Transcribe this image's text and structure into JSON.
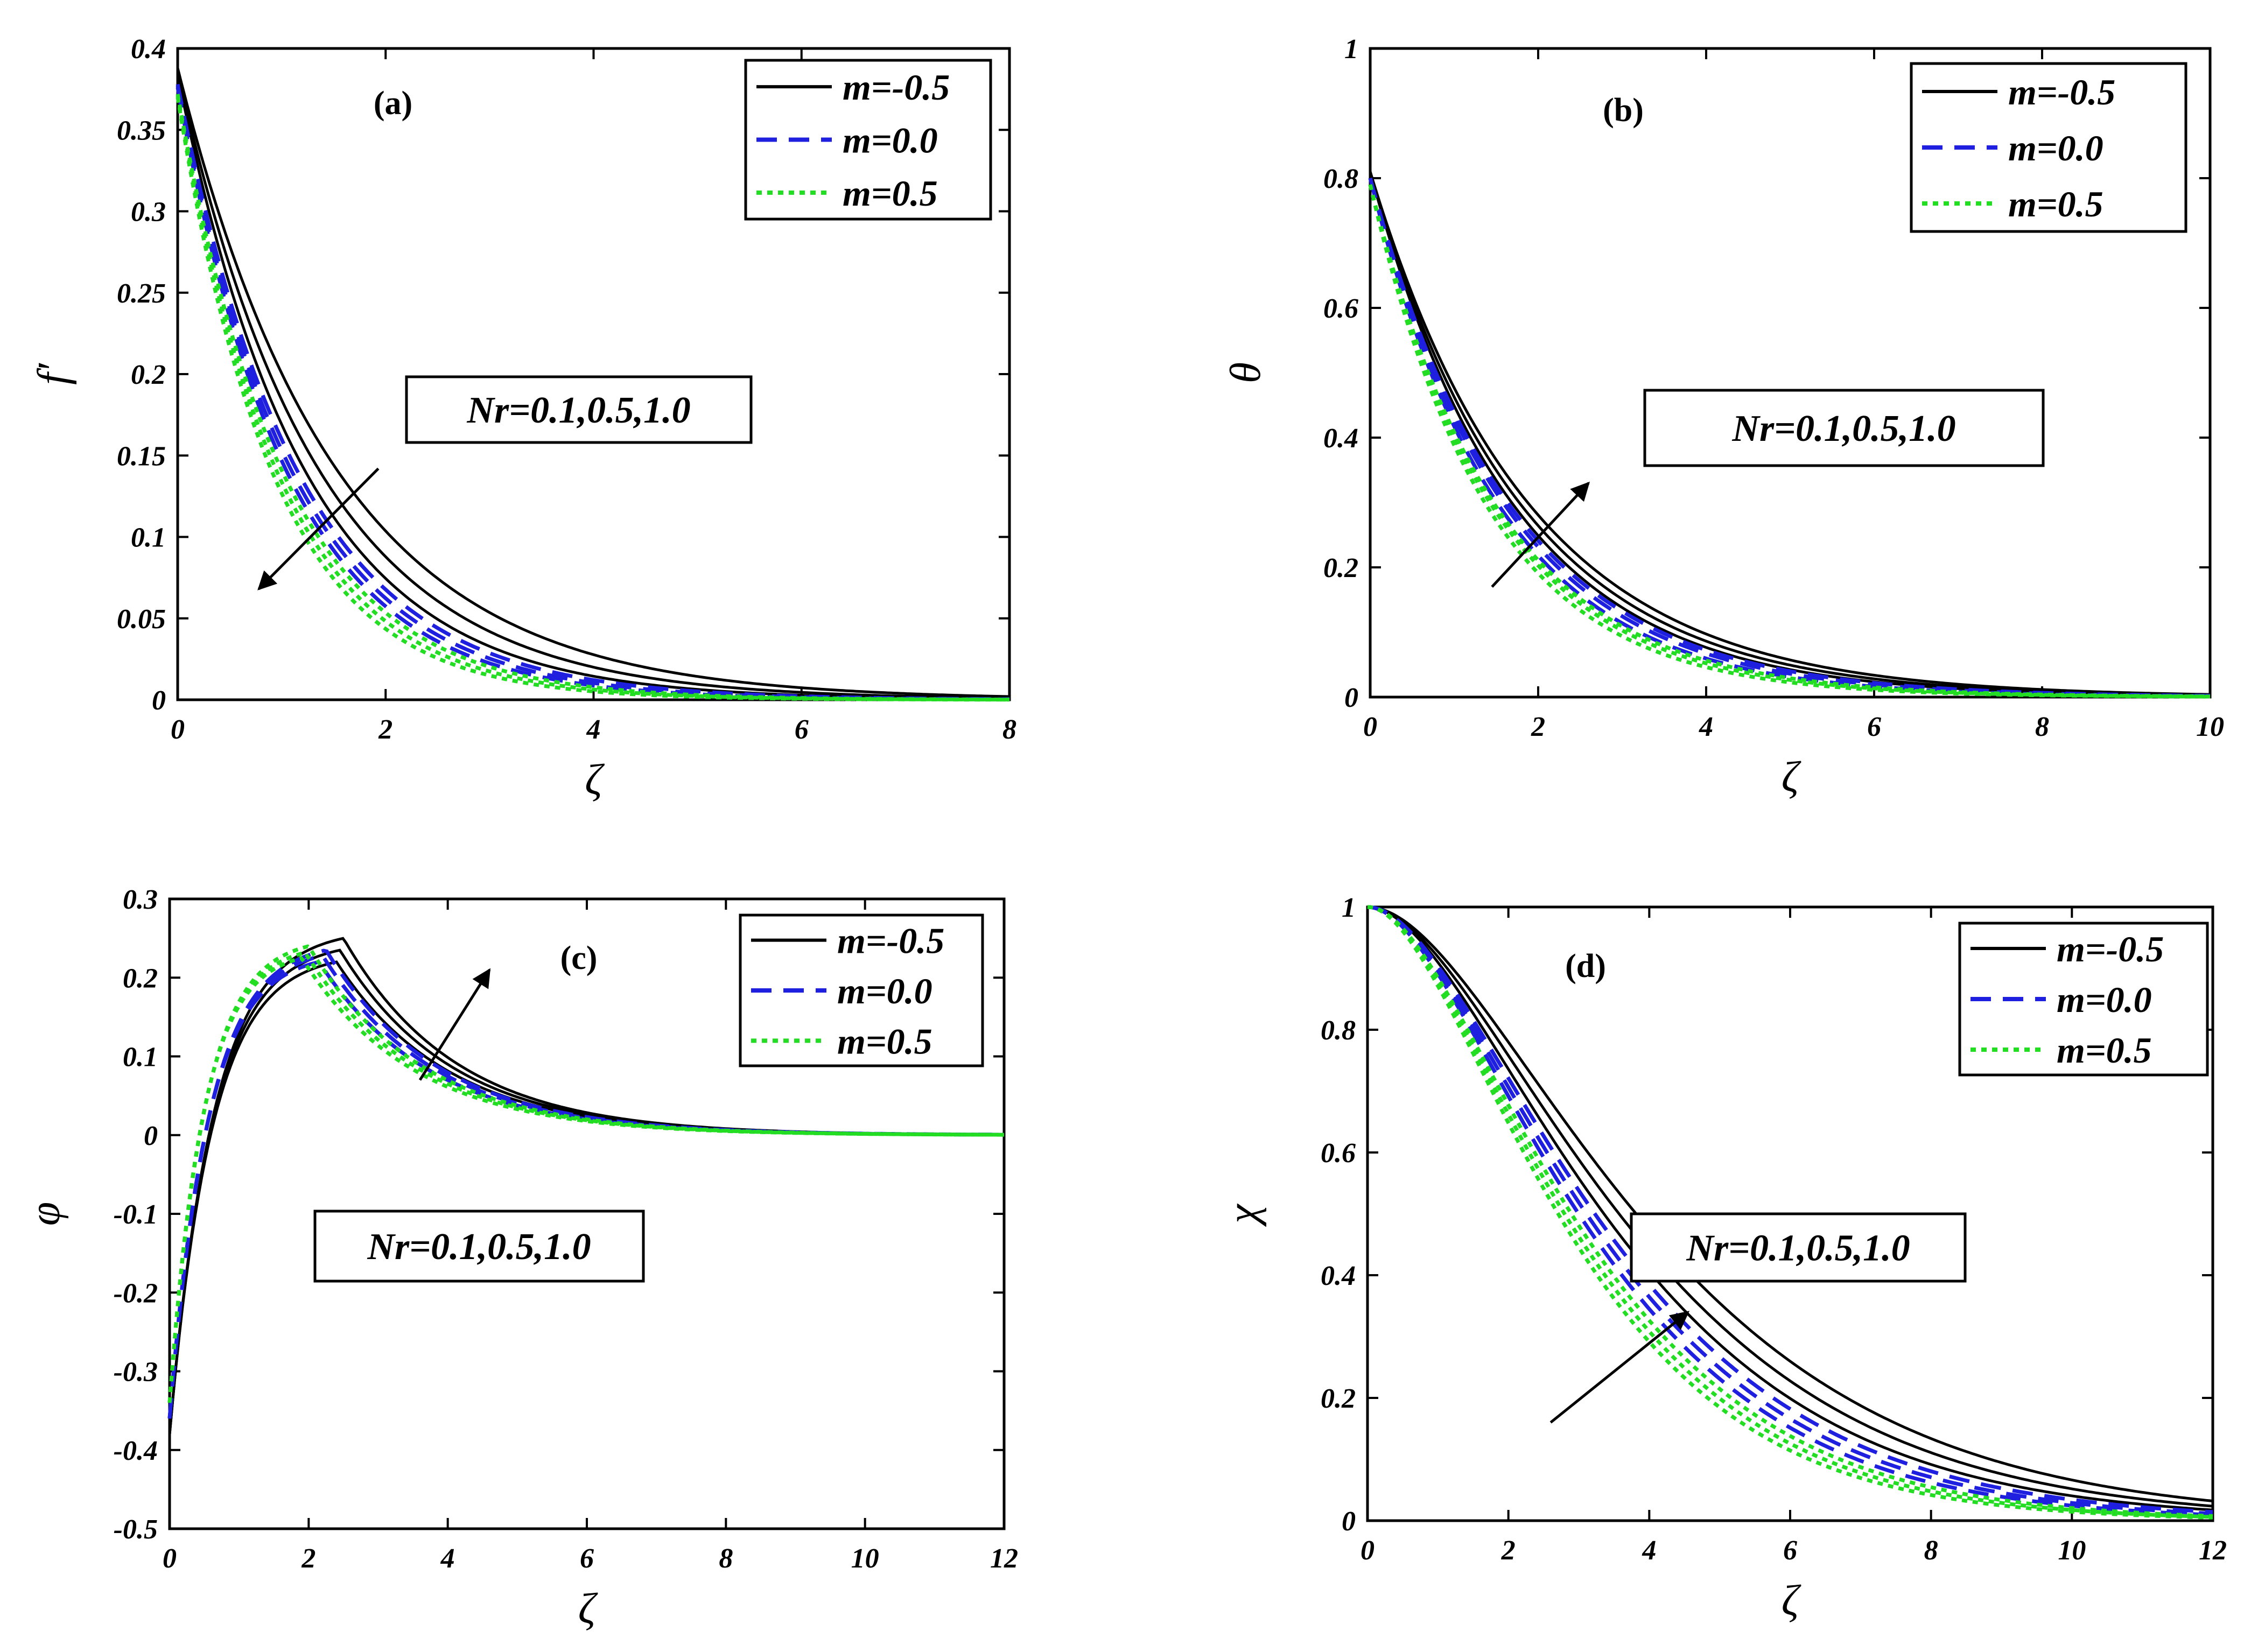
{
  "chart_data": [
    {
      "type": "line",
      "panel": "(a)",
      "xlabel": "ζ",
      "ylabel": "f′",
      "xlim": [
        0,
        8
      ],
      "ylim": [
        0,
        0.4
      ],
      "xticks": [
        0,
        2,
        4,
        6,
        8
      ],
      "yticks": [
        0,
        0.05,
        0.1,
        0.15,
        0.2,
        0.25,
        0.3,
        0.35,
        0.4
      ],
      "grid": false,
      "legend_position": "top-right",
      "legend": [
        {
          "label": "m=-0.5",
          "color": "#000000",
          "style": "solid"
        },
        {
          "label": "m=0.0",
          "color": "#1f1fe0",
          "style": "dashed"
        },
        {
          "label": "m=0.5",
          "color": "#22dd22",
          "style": "dotted"
        }
      ],
      "annotation": {
        "text": "Nr=0.1,0.5,1.0",
        "arrow_from": [
          1.93,
          0.142
        ],
        "arrow_to": [
          0.78,
          0.068
        ]
      },
      "series": [
        {
          "name": "m=-0.5",
          "Nr": 0.1,
          "family": "m=-0.5",
          "f0": 0.388,
          "decay": 0.66
        },
        {
          "name": "m=-0.5",
          "Nr": 0.5,
          "family": "m=-0.5",
          "f0": 0.386,
          "decay": 0.74
        },
        {
          "name": "m=-0.5",
          "Nr": 1.0,
          "family": "m=-0.5",
          "f0": 0.384,
          "decay": 0.82
        },
        {
          "name": "m=0.0",
          "Nr": 0.1,
          "family": "m=0.0",
          "f0": 0.378,
          "decay": 0.86
        },
        {
          "name": "m=0.0",
          "Nr": 0.5,
          "family": "m=0.0",
          "f0": 0.377,
          "decay": 0.9
        },
        {
          "name": "m=0.0",
          "Nr": 1.0,
          "family": "m=0.0",
          "f0": 0.376,
          "decay": 0.94
        },
        {
          "name": "m=0.5",
          "Nr": 0.1,
          "family": "m=0.5",
          "f0": 0.372,
          "decay": 0.97
        },
        {
          "name": "m=0.5",
          "Nr": 0.5,
          "family": "m=0.5",
          "f0": 0.371,
          "decay": 1.02
        },
        {
          "name": "m=0.5",
          "Nr": 1.0,
          "family": "m=0.5",
          "f0": 0.37,
          "decay": 1.07
        }
      ]
    },
    {
      "type": "line",
      "panel": "(b)",
      "xlabel": "ζ",
      "ylabel": "θ",
      "xlim": [
        0,
        10
      ],
      "ylim": [
        0,
        1
      ],
      "xticks": [
        0,
        2,
        4,
        6,
        8,
        10
      ],
      "yticks": [
        0,
        0.2,
        0.4,
        0.6,
        0.8,
        1
      ],
      "grid": false,
      "legend_position": "top-right",
      "legend": [
        {
          "label": "m=-0.5",
          "color": "#000000",
          "style": "solid"
        },
        {
          "label": "m=0.0",
          "color": "#1f1fe0",
          "style": "dashed"
        },
        {
          "label": "m=0.5",
          "color": "#22dd22",
          "style": "dotted"
        }
      ],
      "annotation": {
        "text": "Nr=0.1,0.5,1.0",
        "arrow_from": [
          1.45,
          0.17
        ],
        "arrow_to": [
          2.6,
          0.33
        ]
      },
      "series": [
        {
          "name": "m=-0.5",
          "Nr": 0.1,
          "family": "m=-0.5",
          "f0": 0.81,
          "decay": 0.59
        },
        {
          "name": "m=-0.5",
          "Nr": 0.5,
          "family": "m=-0.5",
          "f0": 0.81,
          "decay": 0.56
        },
        {
          "name": "m=-0.5",
          "Nr": 1.0,
          "family": "m=-0.5",
          "f0": 0.81,
          "decay": 0.53
        },
        {
          "name": "m=0.0",
          "Nr": 0.1,
          "family": "m=0.0",
          "f0": 0.8,
          "decay": 0.65
        },
        {
          "name": "m=0.0",
          "Nr": 0.5,
          "family": "m=0.0",
          "f0": 0.8,
          "decay": 0.62
        },
        {
          "name": "m=0.0",
          "Nr": 1.0,
          "family": "m=0.0",
          "f0": 0.8,
          "decay": 0.6
        },
        {
          "name": "m=0.5",
          "Nr": 0.1,
          "family": "m=0.5",
          "f0": 0.79,
          "decay": 0.71
        },
        {
          "name": "m=0.5",
          "Nr": 0.5,
          "family": "m=0.5",
          "f0": 0.79,
          "decay": 0.68
        },
        {
          "name": "m=0.5",
          "Nr": 1.0,
          "family": "m=0.5",
          "f0": 0.79,
          "decay": 0.66
        }
      ]
    },
    {
      "type": "line",
      "panel": "(c)",
      "xlabel": "ζ",
      "ylabel": "φ",
      "xlim": [
        0,
        12
      ],
      "ylim": [
        -0.5,
        0.3
      ],
      "xticks": [
        0,
        2,
        4,
        6,
        8,
        10,
        12
      ],
      "yticks": [
        -0.5,
        -0.4,
        -0.3,
        -0.2,
        -0.1,
        0,
        0.1,
        0.2,
        0.3
      ],
      "grid": false,
      "legend_position": "top-right",
      "legend": [
        {
          "label": "m=-0.5",
          "color": "#000000",
          "style": "solid"
        },
        {
          "label": "m=0.0",
          "color": "#1f1fe0",
          "style": "dashed"
        },
        {
          "label": "m=0.5",
          "color": "#22dd22",
          "style": "dotted"
        }
      ],
      "annotation": {
        "text": "Nr=0.1,0.5,1.0",
        "arrow_from": [
          3.6,
          0.07
        ],
        "arrow_to": [
          4.6,
          0.21
        ]
      },
      "series": [
        {
          "name": "m=-0.5",
          "Nr": 0.1,
          "family": "m=-0.5",
          "f0": -0.38,
          "peak_x": 2.4,
          "peak_y": 0.22
        },
        {
          "name": "m=-0.5",
          "Nr": 0.5,
          "family": "m=-0.5",
          "f0": -0.38,
          "peak_x": 2.45,
          "peak_y": 0.235
        },
        {
          "name": "m=-0.5",
          "Nr": 1.0,
          "family": "m=-0.5",
          "f0": -0.38,
          "peak_x": 2.5,
          "peak_y": 0.25
        },
        {
          "name": "m=0.0",
          "Nr": 0.1,
          "family": "m=0.0",
          "f0": -0.36,
          "peak_x": 2.15,
          "peak_y": 0.22
        },
        {
          "name": "m=0.0",
          "Nr": 0.5,
          "family": "m=0.0",
          "f0": -0.36,
          "peak_x": 2.2,
          "peak_y": 0.228
        },
        {
          "name": "m=0.0",
          "Nr": 1.0,
          "family": "m=0.0",
          "f0": -0.36,
          "peak_x": 2.25,
          "peak_y": 0.235
        },
        {
          "name": "m=0.5",
          "Nr": 0.1,
          "family": "m=0.5",
          "f0": -0.34,
          "peak_x": 1.9,
          "peak_y": 0.225
        },
        {
          "name": "m=0.5",
          "Nr": 0.5,
          "family": "m=0.5",
          "f0": -0.34,
          "peak_x": 1.95,
          "peak_y": 0.232
        },
        {
          "name": "m=0.5",
          "Nr": 1.0,
          "family": "m=0.5",
          "f0": -0.34,
          "peak_x": 2.0,
          "peak_y": 0.24
        }
      ]
    },
    {
      "type": "line",
      "panel": "(d)",
      "xlabel": "ζ",
      "ylabel": "χ",
      "xlim": [
        0,
        12
      ],
      "ylim": [
        0,
        1
      ],
      "xticks": [
        0,
        2,
        4,
        6,
        8,
        10,
        12
      ],
      "yticks": [
        0,
        0.2,
        0.4,
        0.6,
        0.8,
        1
      ],
      "grid": false,
      "legend_position": "top-right",
      "legend": [
        {
          "label": "m=-0.5",
          "color": "#000000",
          "style": "solid"
        },
        {
          "label": "m=0.0",
          "color": "#1f1fe0",
          "style": "dashed"
        },
        {
          "label": "m=0.5",
          "color": "#22dd22",
          "style": "dotted"
        }
      ],
      "annotation": {
        "text": "Nr=0.1,0.5,1.0",
        "arrow_from": [
          2.6,
          0.16
        ],
        "arrow_to": [
          4.55,
          0.34
        ]
      },
      "series": [
        {
          "name": "m=-0.5",
          "Nr": 0.1,
          "family": "m=-0.5",
          "f0": 1.0,
          "decay": 0.5
        },
        {
          "name": "m=-0.5",
          "Nr": 0.5,
          "family": "m=-0.5",
          "f0": 1.0,
          "decay": 0.47
        },
        {
          "name": "m=-0.5",
          "Nr": 1.0,
          "family": "m=-0.5",
          "f0": 1.0,
          "decay": 0.44
        },
        {
          "name": "m=0.0",
          "Nr": 0.1,
          "family": "m=0.0",
          "f0": 1.0,
          "decay": 0.56
        },
        {
          "name": "m=0.0",
          "Nr": 0.5,
          "family": "m=0.0",
          "f0": 1.0,
          "decay": 0.54
        },
        {
          "name": "m=0.0",
          "Nr": 1.0,
          "family": "m=0.0",
          "f0": 1.0,
          "decay": 0.52
        },
        {
          "name": "m=0.5",
          "Nr": 0.1,
          "family": "m=0.5",
          "f0": 1.0,
          "decay": 0.62
        },
        {
          "name": "m=0.5",
          "Nr": 0.5,
          "family": "m=0.5",
          "f0": 1.0,
          "decay": 0.6
        },
        {
          "name": "m=0.5",
          "Nr": 1.0,
          "family": "m=0.5",
          "f0": 1.0,
          "decay": 0.58
        }
      ]
    }
  ]
}
